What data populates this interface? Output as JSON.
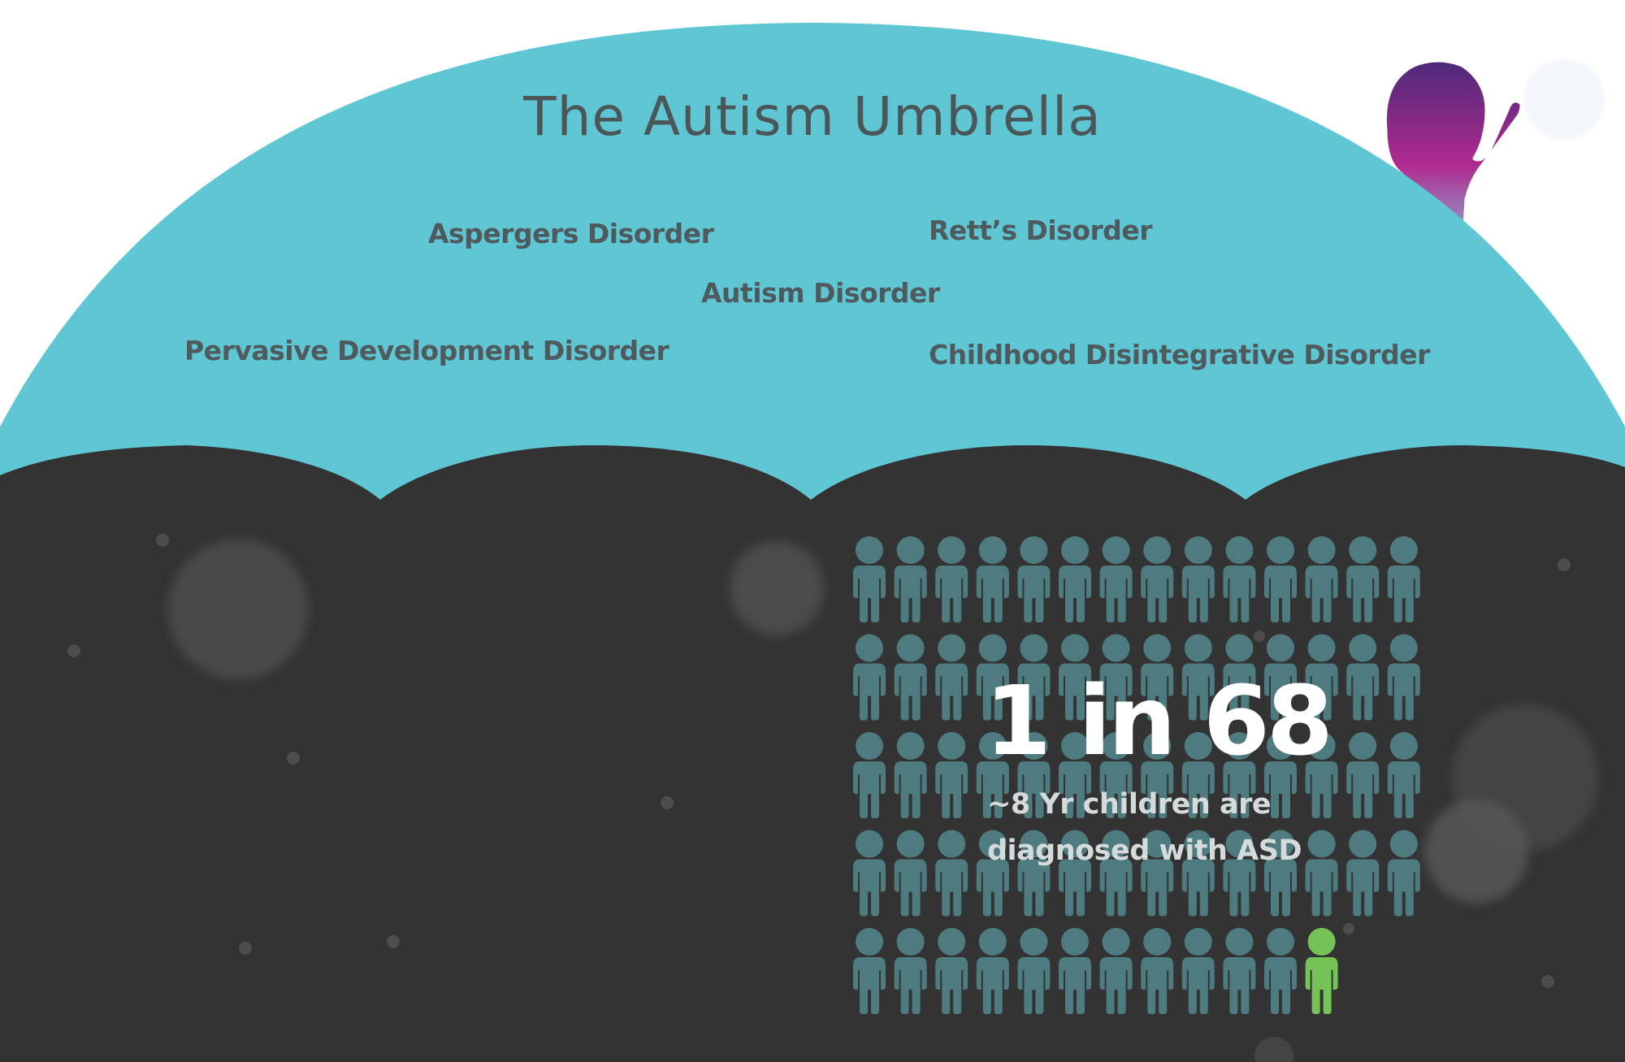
{
  "header": {
    "title": "The Autism Umbrella"
  },
  "disorders": [
    {
      "label": "Aspergers Disorder"
    },
    {
      "label": "Rett’s Disorder"
    },
    {
      "label": "Autism Disorder"
    },
    {
      "label": "Pervasive Development Disorder"
    },
    {
      "label": "Childhood Disintegrative Disorder"
    }
  ],
  "statistic": {
    "headline": "1 in 68",
    "caption_line1": "~8 Yr children are",
    "caption_line2": "diagnosed with ASD",
    "total_figures": 68,
    "highlighted_figures": 1
  },
  "colors": {
    "umbrella_canopy": "#5fc6d3",
    "background_dark": "#333333",
    "figure": "#4d7b7f",
    "figure_highlight": "#75c257",
    "text_label": "#4e5a5d",
    "child_gradient_top": "#4b2a7a",
    "child_gradient_mid": "#b02a8f",
    "child_gradient_bottom": "#7fd3e6"
  },
  "icons": {
    "person": "person-icon",
    "child": "child-waving-icon"
  }
}
